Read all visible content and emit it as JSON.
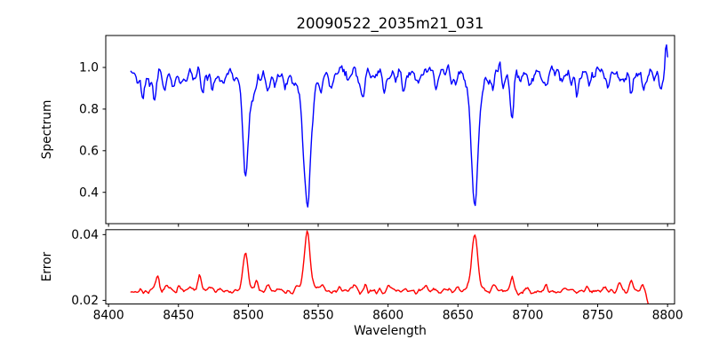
{
  "figure": {
    "title": "20090522_2035m21_031",
    "xlabel": "Wavelength",
    "ylabel_top": "Spectrum",
    "ylabel_bottom": "Error"
  },
  "colors": {
    "spectrum_line": "#0000ff",
    "error_line": "#ff0000",
    "axis": "#000000",
    "background": "#ffffff"
  },
  "chart_data": {
    "type": "line",
    "title": "20090522_2035m21_031",
    "xlabel": "Wavelength",
    "grid": false,
    "legend": "none",
    "xlim": [
      8398,
      8805
    ],
    "xticks": [
      8400,
      8450,
      8500,
      8550,
      8600,
      8650,
      8700,
      8750,
      8800
    ],
    "xtick_labels": [
      "8400",
      "8450",
      "8500",
      "8550",
      "8600",
      "8650",
      "8700",
      "8750",
      "8800"
    ],
    "panels": [
      {
        "ylabel": "Spectrum",
        "ylim": [
          0.2495,
          1.1535
        ],
        "yticks": [
          0.4,
          0.6,
          0.8,
          1.0
        ],
        "ytick_labels": [
          "0.4",
          "0.6",
          "0.8",
          "1.0"
        ],
        "series": {
          "name": "spectrum",
          "color": "#0000ff",
          "x_start": 8416,
          "x_end": 8800,
          "n_points": 520,
          "baseline": 0.97,
          "noise_sigma": 0.019,
          "seed": 42,
          "features_format": "[center_wavelength, amplitude(+emission/-absorption), sigma_angstrom]",
          "features": [
            [
              8424.5,
              -0.1,
              1.2
            ],
            [
              8429,
              -0.05,
              1.0
            ],
            [
              8433,
              -0.14,
              1.2
            ],
            [
              8440,
              -0.09,
              1.0
            ],
            [
              8446,
              -0.07,
              1.0
            ],
            [
              8452,
              -0.05,
              1.0
            ],
            [
              8461,
              -0.05,
              1.0
            ],
            [
              8467,
              -0.1,
              1.2
            ],
            [
              8474,
              -0.06,
              1.0
            ],
            [
              8481,
              -0.06,
              1.0
            ],
            [
              8490,
              -0.05,
              1.0
            ],
            [
              8498,
              -0.44,
              1.8
            ],
            [
              8498,
              -0.07,
              5.0
            ],
            [
              8503.5,
              -0.09,
              1.3
            ],
            [
              8514,
              -0.09,
              1.2
            ],
            [
              8519,
              -0.06,
              1.0
            ],
            [
              8526,
              -0.05,
              1.0
            ],
            [
              8542,
              -0.58,
              2.4
            ],
            [
              8542,
              -0.09,
              7.0
            ],
            [
              8552,
              -0.06,
              1.0
            ],
            [
              8560,
              -0.05,
              1.0
            ],
            [
              8571,
              -0.04,
              1.0
            ],
            [
              8582,
              -0.1,
              1.3
            ],
            [
              8590,
              -0.04,
              1.0
            ],
            [
              8598,
              -0.07,
              1.2
            ],
            [
              8611,
              -0.09,
              1.2
            ],
            [
              8621,
              -0.05,
              1.0
            ],
            [
              8634,
              -0.04,
              1.0
            ],
            [
              8648,
              -0.06,
              1.0
            ],
            [
              8662,
              -0.56,
              2.2
            ],
            [
              8662,
              -0.08,
              6.0
            ],
            [
              8674.5,
              -0.09,
              1.1
            ],
            [
              8682,
              -0.05,
              1.0
            ],
            [
              8688.5,
              -0.23,
              1.3
            ],
            [
              8701,
              -0.04,
              1.0
            ],
            [
              8713,
              -0.05,
              1.0
            ],
            [
              8725,
              -0.04,
              1.0
            ],
            [
              8735,
              -0.07,
              1.1
            ],
            [
              8744,
              -0.06,
              1.0
            ],
            [
              8757,
              -0.05,
              1.0
            ],
            [
              8766,
              -0.04,
              1.0
            ],
            [
              8774,
              -0.08,
              1.1
            ],
            [
              8783,
              -0.09,
              1.1
            ],
            [
              8790,
              -0.05,
              1.0
            ],
            [
              8795,
              -0.04,
              1.0
            ],
            [
              8799,
              0.13,
              0.8
            ]
          ],
          "notable_points": {
            "continuum_level": 0.97,
            "CaII_8498_min": 0.46,
            "CaII_8542_min": 0.29,
            "CaII_8662_min": 0.32,
            "dip_8688_min": 0.73,
            "spike_8799_max": 1.11
          }
        }
      },
      {
        "ylabel": "Error",
        "ylim": [
          0.0189,
          0.0415
        ],
        "yticks": [
          0.02,
          0.04
        ],
        "ytick_labels": [
          "0.02",
          "0.04"
        ],
        "series": {
          "name": "error",
          "color": "#ff0000",
          "x_start": 8416,
          "x_end": 8786,
          "n_points": 500,
          "baseline": 0.0228,
          "noise_sigma": 0.0004,
          "seed": 7,
          "features_format": "[center_wavelength, amplitude, sigma_angstrom]",
          "features": [
            [
              8435,
              0.0042,
              1.2
            ],
            [
              8442,
              0.0015,
              1.0
            ],
            [
              8450,
              0.0022,
              1.0
            ],
            [
              8458,
              0.001,
              1.0
            ],
            [
              8465,
              0.0045,
              1.2
            ],
            [
              8472,
              0.0012,
              1.0
            ],
            [
              8480,
              0.0012,
              1.0
            ],
            [
              8498,
              0.0105,
              1.6
            ],
            [
              8498,
              0.0012,
              4.0
            ],
            [
              8506,
              0.003,
              1.1
            ],
            [
              8514,
              0.0012,
              1.0
            ],
            [
              8521,
              0.0012,
              1.0
            ],
            [
              8542,
              0.016,
              2.0
            ],
            [
              8542,
              0.0015,
              5.0
            ],
            [
              8553,
              0.0018,
              1.5
            ],
            [
              8565,
              0.001,
              1.0
            ],
            [
              8575,
              0.002,
              1.3
            ],
            [
              8584,
              0.0016,
              1.0
            ],
            [
              8600,
              0.002,
              1.2
            ],
            [
              8613,
              0.001,
              1.0
            ],
            [
              8627,
              0.0012,
              1.0
            ],
            [
              8640,
              0.0008,
              1.0
            ],
            [
              8650,
              0.001,
              1.0
            ],
            [
              8662,
              0.0155,
              2.0
            ],
            [
              8662,
              0.0015,
              5.0
            ],
            [
              8676,
              0.0025,
              1.2
            ],
            [
              8689,
              0.0038,
              1.2
            ],
            [
              8700,
              0.0012,
              1.0
            ],
            [
              8713,
              0.0018,
              1.0
            ],
            [
              8727,
              0.001,
              1.0
            ],
            [
              8742,
              0.0015,
              1.0
            ],
            [
              8755,
              0.0022,
              1.2
            ],
            [
              8766,
              0.0028,
              1.2
            ],
            [
              8774,
              0.003,
              1.2
            ],
            [
              8782,
              0.0015,
              1.0
            ],
            [
              8786,
              -0.003,
              0.8
            ]
          ],
          "notable_points": {
            "baseline_level": 0.023,
            "peak_8498": 0.0345,
            "peak_8542": 0.0405,
            "peak_8662": 0.0395,
            "end_min": 0.0198
          }
        }
      }
    ]
  }
}
